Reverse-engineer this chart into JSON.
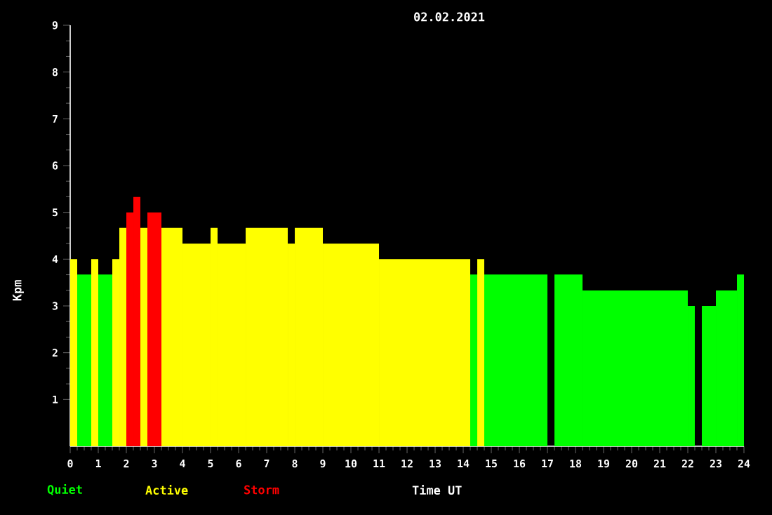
{
  "chart_data": {
    "type": "histogram",
    "title": "02.02.2021",
    "xlabel": "Time UT",
    "ylabel": "Kpm",
    "xlim": [
      0,
      24
    ],
    "xticks": [
      0,
      1,
      2,
      3,
      4,
      5,
      6,
      7,
      8,
      9,
      10,
      11,
      12,
      13,
      14,
      15,
      16,
      17,
      18,
      19,
      20,
      21,
      22,
      23,
      24
    ],
    "ylim": [
      0,
      9
    ],
    "yticks": [
      1,
      2,
      3,
      4,
      5,
      6,
      7,
      8,
      9
    ],
    "legend": "bottom left",
    "grid": false,
    "bins": [
      0,
      0.25,
      0.75,
      1,
      1.5,
      1.75,
      2,
      2.25,
      2.5,
      2.75,
      3.25,
      4,
      5,
      5.25,
      6.25,
      7.75,
      8,
      9,
      11,
      14.25,
      14.5,
      14.75,
      17,
      17.25,
      18.25,
      22,
      22.25,
      22.5,
      23,
      23.75,
      24
    ],
    "series": [
      {
        "name": "Quiet",
        "color": "#00ff00",
        "values": [
          null,
          3.67,
          null,
          3.67,
          null,
          null,
          null,
          null,
          null,
          null,
          null,
          null,
          null,
          null,
          null,
          null,
          null,
          null,
          null,
          3.67,
          null,
          3.67,
          null,
          3.67,
          3.33,
          3.0,
          null,
          3.0,
          3.33,
          3.67
        ]
      },
      {
        "name": "Active",
        "color": "#ffff00",
        "values": [
          4.0,
          null,
          4.0,
          null,
          4.0,
          4.67,
          null,
          null,
          4.67,
          null,
          4.67,
          4.33,
          4.67,
          4.33,
          4.67,
          4.33,
          4.67,
          4.33,
          4.0,
          null,
          4.0,
          null,
          null,
          null,
          null,
          null,
          null,
          null,
          null,
          null
        ]
      },
      {
        "name": "Storm",
        "color": "#ff0000",
        "values": [
          null,
          null,
          null,
          null,
          null,
          null,
          5.0,
          5.33,
          null,
          5.0,
          null,
          null,
          null,
          null,
          null,
          null,
          null,
          null,
          null,
          null,
          null,
          null,
          null,
          null,
          null,
          null,
          null,
          null,
          null,
          null
        ]
      }
    ]
  }
}
